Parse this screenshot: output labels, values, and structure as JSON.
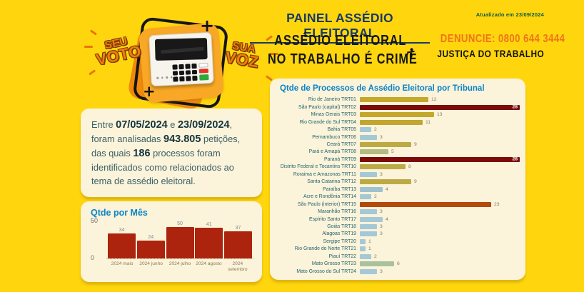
{
  "header": {
    "title": "PAINEL ASSÉDIO ELEITORAL",
    "slogan_line1": "ASSÉDIO ELEITORAL",
    "slogan_line2": "NO TRABALHO É CRIME",
    "updated": "Atualizado em 23/09/2024",
    "denuncie": "DENUNCIE: 0800 644 3444",
    "justica": "JUSTIÇA DO TRABALHO"
  },
  "logo": {
    "word1": "SEU",
    "word2": "VOTO",
    "word3": "SUA",
    "word4": "VOZ",
    "plus_top": "+",
    "plus_bottom": "+"
  },
  "summary": {
    "segments": [
      {
        "text": "Entre ",
        "bold": false
      },
      {
        "text": "07/05/2024",
        "bold": true
      },
      {
        "text": " e ",
        "bold": false
      },
      {
        "text": "23/09/2024",
        "bold": true
      },
      {
        "text": ", foram analisadas ",
        "bold": false
      },
      {
        "text": "943.805",
        "bold": true
      },
      {
        "text": " petições, das quais ",
        "bold": false
      },
      {
        "text": "186",
        "bold": true
      },
      {
        "text": " processos foram identificados como relacionados ao tema de assédio eleitoral.",
        "bold": false
      }
    ]
  },
  "colors": {
    "background": "#FFD60D",
    "card": "#FBF3DA",
    "title_blue": "#0A84C8",
    "denuncie_orange": "#F0731A",
    "header_navy": "#1A3B66"
  },
  "chart_data": [
    {
      "type": "bar",
      "orientation": "vertical",
      "title": "Qtde por Mês",
      "categories": [
        "2024 maio",
        "2024 junho",
        "2024 julho",
        "2024 agosto",
        "2024 setembro"
      ],
      "values": [
        34,
        24,
        50,
        41,
        37
      ],
      "ylim": [
        0,
        50
      ],
      "yticks": [
        "50",
        "0"
      ],
      "bar_color": "#AC230E",
      "grid": false,
      "legend": false
    },
    {
      "type": "bar",
      "orientation": "horizontal",
      "title": "Qtde de Processos de Assédio Eleitoral por Tribunal",
      "categories": [
        "Rio de Janeiro TRT01",
        "São Paulo (capital) TRT02",
        "Minas Gerais TRT03",
        "Rio Grande do Sul TRT04",
        "Bahia TRT05",
        "Pernambuco TRT06",
        "Ceará TRT07",
        "Pará e Amapá TRT08",
        "Paraná TRT09",
        "Distrito Federal e Tocantins TRT10",
        "Roraima e Amazonas TRT11",
        "Santa Catarina TRT12",
        "Paraíba TRT13",
        "Acre e Rondônia TRT14",
        "São Paulo (interior) TRT15",
        "Maranhão TRT16",
        "Espírito Santo TRT17",
        "Goiás TRT18",
        "Alagoas TRT19",
        "Sergipe TRT20",
        "Rio Grande do Norte TRT21",
        "Piauí TRT22",
        "Mato Grosso TRT23",
        "Mato Grosso do Sul TRT24"
      ],
      "values": [
        12,
        28,
        13,
        11,
        2,
        3,
        9,
        5,
        28,
        8,
        3,
        9,
        4,
        2,
        23,
        3,
        4,
        3,
        3,
        1,
        1,
        2,
        6,
        3
      ],
      "colors": [
        "#C4A72B",
        "#7C0A07",
        "#C4A72B",
        "#C2A62E",
        "#A5C8D6",
        "#A5C8D6",
        "#BCAB44",
        "#B2BB81",
        "#7C0A07",
        "#BCAB44",
        "#A5C8D6",
        "#BCAB44",
        "#9FC2CE",
        "#A5C8D6",
        "#B3490C",
        "#A5C8D6",
        "#A5C8D6",
        "#A5C8D6",
        "#A5C8D6",
        "#A5C8D6",
        "#A5C8D6",
        "#A5C8D6",
        "#A9C29B",
        "#A5C8D6"
      ],
      "max_color": "#7C0A07",
      "xlim": [
        0,
        28
      ],
      "grid": false,
      "legend": false
    }
  ]
}
